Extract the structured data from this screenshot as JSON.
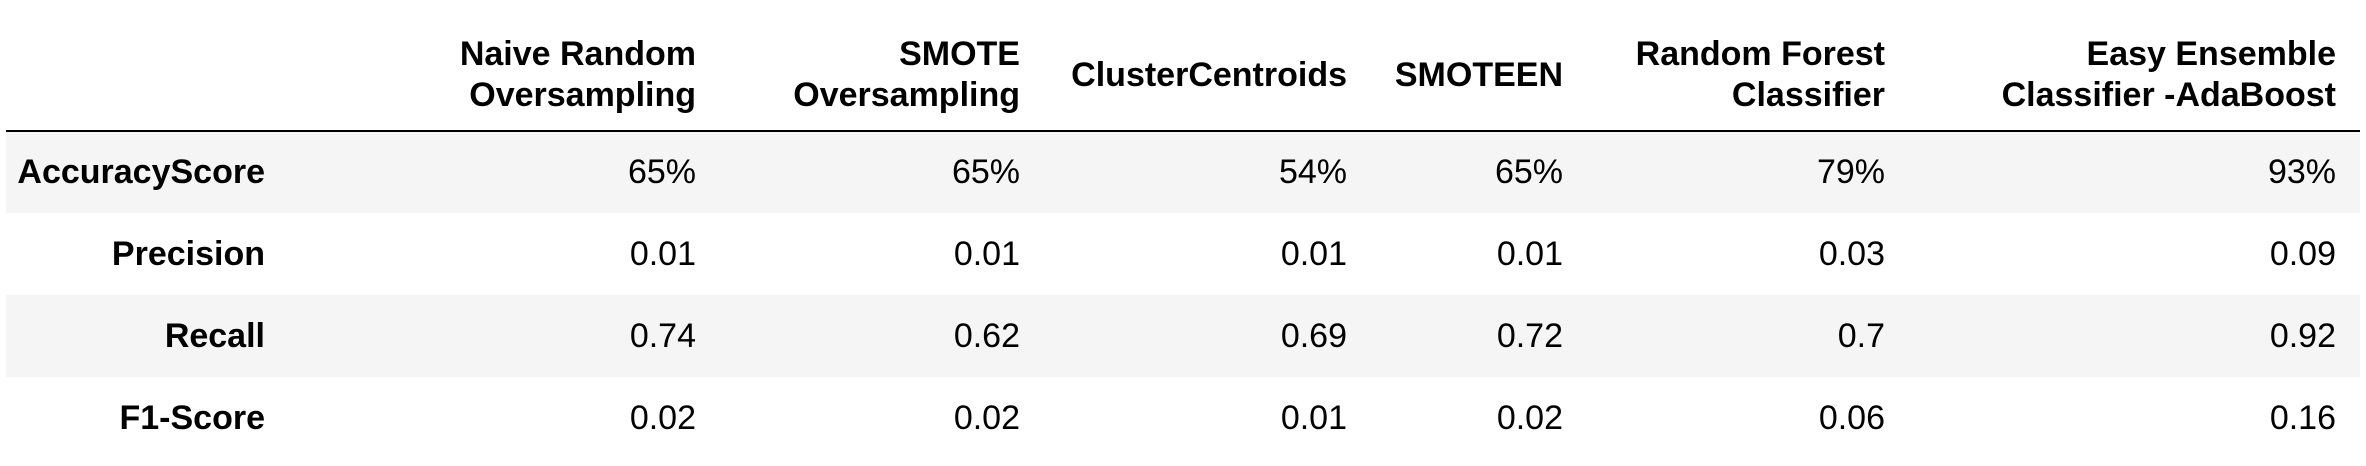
{
  "chart_data": {
    "type": "table",
    "columns": [
      {
        "line1": "Naive Random",
        "line2": "Oversampling"
      },
      {
        "line1": "SMOTE",
        "line2": "Oversampling"
      },
      {
        "line1": "ClusterCentroids",
        "line2": ""
      },
      {
        "line1": "SMOTEEN",
        "line2": ""
      },
      {
        "line1": "Random Forest",
        "line2": "Classifier"
      },
      {
        "line1": "Easy Ensemble",
        "line2": "Classifier -AdaBoost"
      }
    ],
    "rows": [
      {
        "label": "AccuracyScore",
        "cells": [
          "65%",
          "65%",
          "54%",
          "65%",
          "79%",
          "93%"
        ]
      },
      {
        "label": "Precision",
        "cells": [
          "0.01",
          "0.01",
          "0.01",
          "0.01",
          "0.03",
          "0.09"
        ]
      },
      {
        "label": "Recall",
        "cells": [
          "0.74",
          "0.62",
          "0.69",
          "0.72",
          "0.7",
          "0.92"
        ]
      },
      {
        "label": "F1-Score",
        "cells": [
          "0.02",
          "0.02",
          "0.01",
          "0.02",
          "0.06",
          "0.16"
        ]
      }
    ],
    "colors": {
      "stripe_row": "#f5f5f5",
      "plain_row": "#ffffff",
      "rule": "#000000",
      "text": "#000000"
    }
  }
}
